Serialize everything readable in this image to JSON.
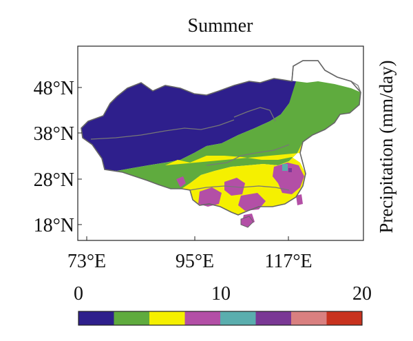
{
  "map": {
    "title": "Summer",
    "colorbar_label": "Precipitation (mm/day)",
    "lat_ticks": [
      "48°N",
      "38°N",
      "28°N",
      "18°N"
    ],
    "lon_ticks": [
      "73°E",
      "95°E",
      "117°E"
    ],
    "colorbar": {
      "tick_labels": [
        "0",
        "10",
        "20"
      ],
      "range": [
        0,
        20
      ],
      "bin_size": 2.5,
      "colors": [
        "#2e1f8c",
        "#5fab3e",
        "#f5f000",
        "#b34fa6",
        "#5aaeae",
        "#7a3895",
        "#d98080",
        "#c8321e"
      ]
    }
  }
}
